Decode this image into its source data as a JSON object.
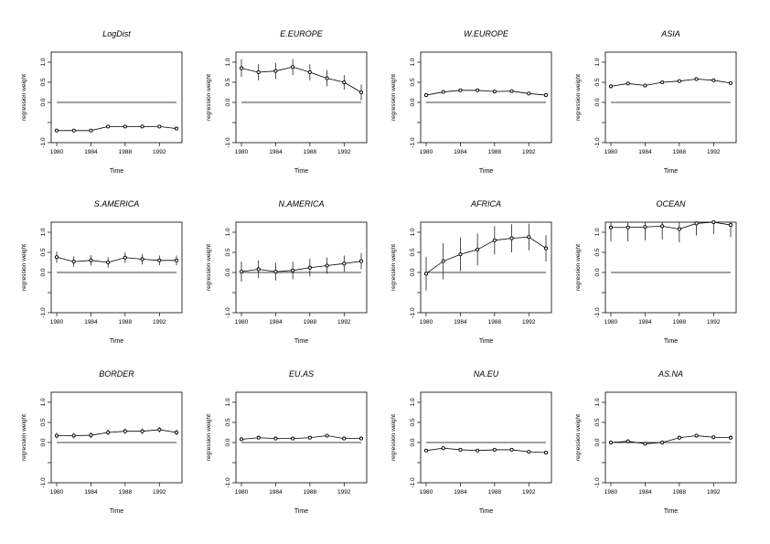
{
  "chart_data": [
    {
      "type": "line",
      "title": "LogDist",
      "xlabel": "Time",
      "ylabel": "regression weight",
      "x": [
        1980,
        1982,
        1984,
        1986,
        1988,
        1990,
        1992,
        1994
      ],
      "values": [
        -0.7,
        -0.7,
        -0.7,
        -0.6,
        -0.6,
        -0.6,
        -0.6,
        -0.65
      ],
      "err": [
        0.02,
        0.02,
        0.02,
        0.02,
        0.02,
        0.02,
        0.02,
        0.02
      ],
      "ylim": [
        -1.0,
        1.25
      ],
      "yticks": [
        -1.0,
        -0.5,
        0.0,
        0.5,
        1.0
      ],
      "ytick_labels": [
        "-1.0",
        "",
        "0.0",
        "0.5",
        "1.0"
      ],
      "xticks": [
        1980,
        1984,
        1988,
        1992
      ],
      "xtick_labels": [
        "1980",
        "1984",
        "1988",
        "1992"
      ]
    },
    {
      "type": "line",
      "title": "E.EUROPE",
      "xlabel": "Time",
      "ylabel": "regression weight",
      "x": [
        1980,
        1982,
        1984,
        1986,
        1988,
        1990,
        1992,
        1994
      ],
      "values": [
        0.85,
        0.75,
        0.78,
        0.88,
        0.75,
        0.6,
        0.5,
        0.25
      ],
      "err": [
        0.22,
        0.2,
        0.2,
        0.2,
        0.2,
        0.2,
        0.18,
        0.2
      ],
      "ylim": [
        -1.0,
        1.25
      ],
      "yticks": [
        -1.0,
        -0.5,
        0.0,
        0.5,
        1.0
      ],
      "ytick_labels": [
        "-1.0",
        "",
        "0.0",
        "0.5",
        "1.0"
      ],
      "xticks": [
        1980,
        1984,
        1988,
        1992
      ],
      "xtick_labels": [
        "1980",
        "1984",
        "1988",
        "1992"
      ]
    },
    {
      "type": "line",
      "title": "W.EUROPE",
      "xlabel": "Time",
      "ylabel": "regression weight",
      "x": [
        1980,
        1982,
        1984,
        1986,
        1988,
        1990,
        1992,
        1994
      ],
      "values": [
        0.18,
        0.26,
        0.3,
        0.3,
        0.27,
        0.28,
        0.22,
        0.18
      ],
      "err": [
        0.05,
        0.04,
        0.04,
        0.04,
        0.04,
        0.04,
        0.04,
        0.04
      ],
      "ylim": [
        -1.0,
        1.25
      ],
      "yticks": [
        -1.0,
        -0.5,
        0.0,
        0.5,
        1.0
      ],
      "ytick_labels": [
        "-1.0",
        "",
        "0.0",
        "0.5",
        "1.0"
      ],
      "xticks": [
        1980,
        1984,
        1988,
        1992
      ],
      "xtick_labels": [
        "1980",
        "1984",
        "1988",
        "1992"
      ]
    },
    {
      "type": "line",
      "title": "ASIA",
      "xlabel": "Time",
      "ylabel": "regression weight",
      "x": [
        1980,
        1982,
        1984,
        1986,
        1988,
        1990,
        1992,
        1994
      ],
      "values": [
        0.4,
        0.47,
        0.42,
        0.5,
        0.53,
        0.58,
        0.55,
        0.48
      ],
      "err": [
        0.05,
        0.04,
        0.04,
        0.04,
        0.04,
        0.04,
        0.04,
        0.04
      ],
      "ylim": [
        -1.0,
        1.25
      ],
      "yticks": [
        -1.0,
        -0.5,
        0.0,
        0.5,
        1.0
      ],
      "ytick_labels": [
        "-1.0",
        "",
        "0.0",
        "0.5",
        "1.0"
      ],
      "xticks": [
        1980,
        1984,
        1988,
        1992
      ],
      "xtick_labels": [
        "1980",
        "1984",
        "1988",
        "1992"
      ]
    },
    {
      "type": "line",
      "title": "S.AMERICA",
      "xlabel": "Time",
      "ylabel": "regression weight",
      "x": [
        1980,
        1982,
        1984,
        1986,
        1988,
        1990,
        1992,
        1994
      ],
      "values": [
        0.38,
        0.27,
        0.3,
        0.25,
        0.37,
        0.33,
        0.3,
        0.3
      ],
      "err": [
        0.14,
        0.13,
        0.13,
        0.13,
        0.13,
        0.13,
        0.12,
        0.12
      ],
      "ylim": [
        -1.0,
        1.25
      ],
      "yticks": [
        -1.0,
        -0.5,
        0.0,
        0.5,
        1.0
      ],
      "ytick_labels": [
        "-1.0",
        "",
        "0.0",
        "0.5",
        "1.0"
      ],
      "xticks": [
        1980,
        1984,
        1988,
        1992
      ],
      "xtick_labels": [
        "1980",
        "1984",
        "1988",
        "1992"
      ]
    },
    {
      "type": "line",
      "title": "N.AMERICA",
      "xlabel": "Time",
      "ylabel": "regression weight",
      "x": [
        1980,
        1982,
        1984,
        1986,
        1988,
        1990,
        1992,
        1994
      ],
      "values": [
        0.02,
        0.08,
        0.02,
        0.05,
        0.12,
        0.17,
        0.22,
        0.28
      ],
      "err": [
        0.25,
        0.22,
        0.22,
        0.22,
        0.22,
        0.2,
        0.2,
        0.2
      ],
      "ylim": [
        -1.0,
        1.25
      ],
      "yticks": [
        -1.0,
        -0.5,
        0.0,
        0.5,
        1.0
      ],
      "ytick_labels": [
        "-1.0",
        "",
        "0.0",
        "0.5",
        "1.0"
      ],
      "xticks": [
        1980,
        1984,
        1988,
        1992
      ],
      "xtick_labels": [
        "1980",
        "1984",
        "1988",
        "1992"
      ]
    },
    {
      "type": "line",
      "title": "AFRICA",
      "xlabel": "Time",
      "ylabel": "regression weight",
      "x": [
        1980,
        1982,
        1984,
        1986,
        1988,
        1990,
        1992,
        1994
      ],
      "values": [
        -0.03,
        0.28,
        0.45,
        0.57,
        0.8,
        0.85,
        0.88,
        0.6
      ],
      "err": [
        0.42,
        0.45,
        0.42,
        0.4,
        0.35,
        0.35,
        0.33,
        0.33
      ],
      "ylim": [
        -1.0,
        1.25
      ],
      "yticks": [
        -1.0,
        -0.5,
        0.0,
        0.5,
        1.0
      ],
      "ytick_labels": [
        "-1.0",
        "",
        "0.0",
        "0.5",
        "1.0"
      ],
      "xticks": [
        1980,
        1984,
        1988,
        1992
      ],
      "xtick_labels": [
        "1980",
        "1984",
        "1988",
        "1992"
      ]
    },
    {
      "type": "line",
      "title": "OCEAN",
      "xlabel": "Time",
      "ylabel": "regression weight",
      "x": [
        1980,
        1982,
        1984,
        1986,
        1988,
        1990,
        1992,
        1994
      ],
      "values": [
        1.12,
        1.12,
        1.13,
        1.15,
        1.08,
        1.22,
        1.25,
        1.18
      ],
      "err": [
        0.35,
        0.35,
        0.33,
        0.33,
        0.33,
        0.3,
        0.3,
        0.3
      ],
      "ylim": [
        -1.0,
        1.25
      ],
      "yticks": [
        -1.0,
        -0.5,
        0.0,
        0.5,
        1.0
      ],
      "ytick_labels": [
        "-1.0",
        "",
        "0.0",
        "0.5",
        "1.0"
      ],
      "xticks": [
        1980,
        1984,
        1988,
        1992
      ],
      "xtick_labels": [
        "1980",
        "1984",
        "1988",
        "1992"
      ]
    },
    {
      "type": "line",
      "title": "BORDER",
      "xlabel": "Time",
      "ylabel": "regression weight",
      "x": [
        1980,
        1982,
        1984,
        1986,
        1988,
        1990,
        1992,
        1994
      ],
      "values": [
        0.17,
        0.17,
        0.18,
        0.25,
        0.28,
        0.28,
        0.32,
        0.25
      ],
      "err": [
        0.07,
        0.07,
        0.07,
        0.07,
        0.07,
        0.07,
        0.07,
        0.07
      ],
      "ylim": [
        -1.0,
        1.25
      ],
      "yticks": [
        -1.0,
        -0.5,
        0.0,
        0.5,
        1.0
      ],
      "ytick_labels": [
        "-1.0",
        "",
        "0.0",
        "0.5",
        "1.0"
      ],
      "xticks": [
        1980,
        1984,
        1988,
        1992
      ],
      "xtick_labels": [
        "1980",
        "1984",
        "1988",
        "1992"
      ]
    },
    {
      "type": "line",
      "title": "EU.AS",
      "xlabel": "Time",
      "ylabel": "regression weight",
      "x": [
        1980,
        1982,
        1984,
        1986,
        1988,
        1990,
        1992,
        1994
      ],
      "values": [
        0.08,
        0.12,
        0.1,
        0.1,
        0.12,
        0.17,
        0.1,
        0.1
      ],
      "err": [
        0.03,
        0.03,
        0.03,
        0.03,
        0.03,
        0.03,
        0.03,
        0.03
      ],
      "ylim": [
        -1.0,
        1.25
      ],
      "yticks": [
        -1.0,
        -0.5,
        0.0,
        0.5,
        1.0
      ],
      "ytick_labels": [
        "-1.0",
        "",
        "0.0",
        "0.5",
        "1.0"
      ],
      "xticks": [
        1980,
        1984,
        1988,
        1992
      ],
      "xtick_labels": [
        "1980",
        "1984",
        "1988",
        "1992"
      ]
    },
    {
      "type": "line",
      "title": "NA.EU",
      "xlabel": "Time",
      "ylabel": "regression weight",
      "x": [
        1980,
        1982,
        1984,
        1986,
        1988,
        1990,
        1992,
        1994
      ],
      "values": [
        -0.2,
        -0.14,
        -0.18,
        -0.2,
        -0.18,
        -0.18,
        -0.23,
        -0.25
      ],
      "err": [
        0.03,
        0.03,
        0.03,
        0.03,
        0.03,
        0.03,
        0.03,
        0.03
      ],
      "ylim": [
        -1.0,
        1.25
      ],
      "yticks": [
        -1.0,
        -0.5,
        0.0,
        0.5,
        1.0
      ],
      "ytick_labels": [
        "-1.0",
        "",
        "0.0",
        "0.5",
        "1.0"
      ],
      "xticks": [
        1980,
        1984,
        1988,
        1992
      ],
      "xtick_labels": [
        "1980",
        "1984",
        "1988",
        "1992"
      ]
    },
    {
      "type": "line",
      "title": "AS.NA",
      "xlabel": "Time",
      "ylabel": "regression weight",
      "x": [
        1980,
        1982,
        1984,
        1986,
        1988,
        1990,
        1992,
        1994
      ],
      "values": [
        0.0,
        0.03,
        -0.03,
        0.0,
        0.12,
        0.17,
        0.13,
        0.12
      ],
      "err": [
        0.05,
        0.05,
        0.05,
        0.05,
        0.05,
        0.05,
        0.05,
        0.05
      ],
      "ylim": [
        -1.0,
        1.25
      ],
      "yticks": [
        -1.0,
        -0.5,
        0.0,
        0.5,
        1.0
      ],
      "ytick_labels": [
        "-1.0",
        "",
        "0.0",
        "0.5",
        "1.0"
      ],
      "xticks": [
        1980,
        1984,
        1988,
        1992
      ],
      "xtick_labels": [
        "1980",
        "1984",
        "1988",
        "1992"
      ]
    }
  ]
}
